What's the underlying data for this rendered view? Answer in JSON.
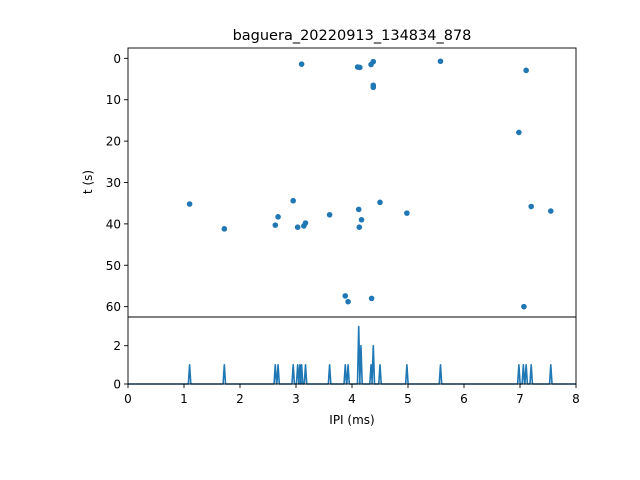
{
  "chart_data": [
    {
      "type": "scatter",
      "title": "baguera_20220913_134834_878",
      "xlabel": "",
      "ylabel": "t (s)",
      "xlim": [
        0,
        8
      ],
      "ylim": [
        62.5,
        -2.5
      ],
      "y_inverted": true,
      "yticks": [
        "0",
        "10",
        "20",
        "30",
        "40",
        "50",
        "60"
      ],
      "marker_color": "#1f77b4",
      "points": [
        {
          "x": 1.1,
          "y": 35.2
        },
        {
          "x": 1.72,
          "y": 41.2
        },
        {
          "x": 2.63,
          "y": 40.3
        },
        {
          "x": 2.68,
          "y": 38.3
        },
        {
          "x": 2.95,
          "y": 34.4
        },
        {
          "x": 3.03,
          "y": 40.8
        },
        {
          "x": 3.1,
          "y": 1.4
        },
        {
          "x": 3.14,
          "y": 40.5
        },
        {
          "x": 3.17,
          "y": 39.8
        },
        {
          "x": 3.6,
          "y": 37.8
        },
        {
          "x": 3.88,
          "y": 57.4
        },
        {
          "x": 3.93,
          "y": 58.8
        },
        {
          "x": 4.1,
          "y": 2.1
        },
        {
          "x": 4.14,
          "y": 2.2
        },
        {
          "x": 4.12,
          "y": 36.5
        },
        {
          "x": 4.13,
          "y": 40.8
        },
        {
          "x": 4.17,
          "y": 39.0
        },
        {
          "x": 4.34,
          "y": 1.5
        },
        {
          "x": 4.38,
          "y": 0.8
        },
        {
          "x": 4.38,
          "y": 6.5
        },
        {
          "x": 4.38,
          "y": 7.0
        },
        {
          "x": 4.35,
          "y": 58.0
        },
        {
          "x": 4.5,
          "y": 34.8
        },
        {
          "x": 4.98,
          "y": 37.4
        },
        {
          "x": 5.58,
          "y": 0.7
        },
        {
          "x": 6.98,
          "y": 17.9
        },
        {
          "x": 7.07,
          "y": 60.0
        },
        {
          "x": 7.11,
          "y": 2.9
        },
        {
          "x": 7.2,
          "y": 35.8
        },
        {
          "x": 7.55,
          "y": 36.9
        }
      ]
    },
    {
      "type": "line",
      "xlabel": "IPI (ms)",
      "ylabel": "",
      "xlim": [
        0,
        8
      ],
      "ylim": [
        0,
        3.5
      ],
      "xticks": [
        "0",
        "1",
        "2",
        "3",
        "4",
        "5",
        "6",
        "7",
        "8"
      ],
      "yticks": [
        "0",
        "2"
      ],
      "line_color": "#1f77b4",
      "spikes": [
        {
          "x": 1.1,
          "y": 1
        },
        {
          "x": 1.72,
          "y": 1
        },
        {
          "x": 2.63,
          "y": 1
        },
        {
          "x": 2.68,
          "y": 1
        },
        {
          "x": 2.95,
          "y": 1
        },
        {
          "x": 3.03,
          "y": 1
        },
        {
          "x": 3.07,
          "y": 1
        },
        {
          "x": 3.1,
          "y": 1
        },
        {
          "x": 3.17,
          "y": 1
        },
        {
          "x": 3.6,
          "y": 1
        },
        {
          "x": 3.88,
          "y": 1
        },
        {
          "x": 3.93,
          "y": 1
        },
        {
          "x": 4.12,
          "y": 3
        },
        {
          "x": 4.16,
          "y": 2
        },
        {
          "x": 4.34,
          "y": 1
        },
        {
          "x": 4.38,
          "y": 2
        },
        {
          "x": 4.5,
          "y": 1
        },
        {
          "x": 4.98,
          "y": 1
        },
        {
          "x": 5.58,
          "y": 1
        },
        {
          "x": 6.98,
          "y": 1
        },
        {
          "x": 7.06,
          "y": 1
        },
        {
          "x": 7.11,
          "y": 1
        },
        {
          "x": 7.2,
          "y": 1
        },
        {
          "x": 7.55,
          "y": 1
        }
      ]
    }
  ]
}
